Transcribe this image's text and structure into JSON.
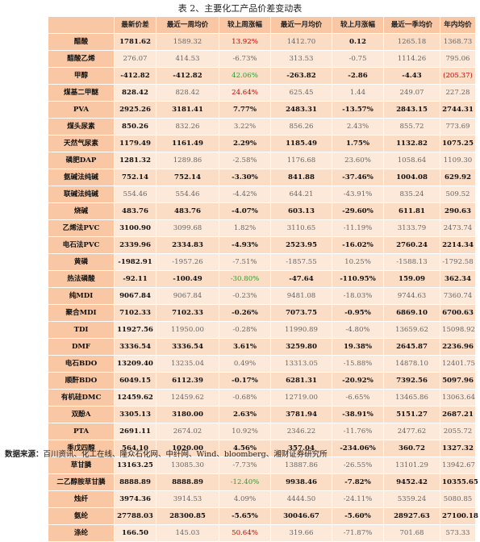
{
  "title": "表 2、主要化工产品价差变动表",
  "headers": [
    "",
    "最新价差",
    "最近一周均价",
    "较上周涨幅",
    "最近一月均价",
    "较上月涨幅",
    "最近一季均价",
    "年内均价"
  ],
  "rows": [
    [
      "醋酸",
      "1781.62",
      "1589.32",
      "13.92%",
      "1412.70",
      "0.12",
      "1265.18",
      "1368.73"
    ],
    [
      "醋酸乙烯",
      "276.07",
      "414.53",
      "-6.73%",
      "313.53",
      "-0.75",
      "1114.26",
      "795.06"
    ],
    [
      "甲醇",
      "-412.82",
      "-412.82",
      "42.06%",
      "-263.82",
      "-2.86",
      "-4.43",
      "(205.37)"
    ],
    [
      "煤基二甲醚",
      "828.42",
      "828.42",
      "24.64%",
      "625.45",
      "1.44",
      "249.07",
      "227.28"
    ],
    [
      "PVA",
      "2925.26",
      "3181.41",
      "7.77%",
      "2483.31",
      "-13.57%",
      "2843.15",
      "2744.31"
    ],
    [
      "煤头尿素",
      "850.26",
      "832.26",
      "3.22%",
      "856.26",
      "2.43%",
      "855.72",
      "773.69"
    ],
    [
      "天然气尿素",
      "1179.49",
      "1161.49",
      "2.29%",
      "1185.49",
      "1.75%",
      "1132.82",
      "1075.25"
    ],
    [
      "磷肥DAP",
      "1281.32",
      "1289.86",
      "-2.58%",
      "1176.68",
      "23.60%",
      "1058.64",
      "1109.30"
    ],
    [
      "氨碱法纯碱",
      "752.14",
      "752.14",
      "-3.30%",
      "841.88",
      "-37.46%",
      "1004.08",
      "629.92"
    ],
    [
      "联碱法纯碱",
      "554.46",
      "554.46",
      "-4.42%",
      "644.21",
      "-43.91%",
      "835.24",
      "509.52"
    ],
    [
      "烧碱",
      "483.76",
      "483.76",
      "-4.07%",
      "603.13",
      "-29.60%",
      "611.81",
      "290.63"
    ],
    [
      "乙烯法PVC",
      "3100.90",
      "3099.68",
      "1.82%",
      "3110.65",
      "-11.19%",
      "3133.79",
      "2473.74"
    ],
    [
      "电石法PVC",
      "2339.96",
      "2334.83",
      "-4.93%",
      "2523.95",
      "-16.02%",
      "2760.24",
      "2214.34"
    ],
    [
      "黄磷",
      "-1982.91",
      "-1957.26",
      "-7.51%",
      "-1857.55",
      "10.25%",
      "-1588.13",
      "-1792.58"
    ],
    [
      "热法磷酸",
      "-92.11",
      "-100.49",
      "-30.80%",
      "-47.64",
      "-110.95%",
      "159.09",
      "362.34"
    ],
    [
      "纯MDI",
      "9067.84",
      "9067.84",
      "-0.23%",
      "9481.08",
      "-18.03%",
      "9744.63",
      "7360.74"
    ],
    [
      "聚合MDI",
      "7102.33",
      "7102.33",
      "-0.26%",
      "7073.75",
      "-0.95%",
      "6869.10",
      "6700.63"
    ],
    [
      "TDI",
      "11927.56",
      "11950.00",
      "-0.28%",
      "11990.89",
      "-4.80%",
      "13659.62",
      "15098.92"
    ],
    [
      "DMF",
      "3336.54",
      "3336.54",
      "3.61%",
      "3259.80",
      "19.38%",
      "2645.87",
      "2236.96"
    ],
    [
      "电石BDO",
      "13209.40",
      "13235.04",
      "0.49%",
      "13313.05",
      "-15.88%",
      "14878.10",
      "12401.75"
    ],
    [
      "顺酐BDO",
      "6049.15",
      "6112.39",
      "-0.17%",
      "6281.31",
      "-20.92%",
      "7392.56",
      "5097.96"
    ],
    [
      "有机硅DMC",
      "12459.62",
      "12459.62",
      "-0.68%",
      "12719.00",
      "-6.65%",
      "13465.86",
      "13063.64"
    ],
    [
      "双酚A",
      "3305.13",
      "3180.00",
      "2.63%",
      "3781.94",
      "-38.91%",
      "5151.27",
      "2687.21"
    ],
    [
      "PTA",
      "2691.11",
      "2674.02",
      "10.92%",
      "2346.22",
      "-11.76%",
      "2477.62",
      "2055.72"
    ],
    [
      "季戊四醇",
      "564.10",
      "1020.00",
      "4.56%",
      "357.04",
      "-234.06%",
      "360.72",
      "1327.32"
    ],
    [
      "草甘膦",
      "13163.25",
      "13085.30",
      "-7.73%",
      "13887.86",
      "-26.55%",
      "13101.29",
      "13942.67"
    ],
    [
      "二乙醇胺草甘膦",
      "8888.89",
      "8888.89",
      "-12.40%",
      "9938.46",
      "-7.82%",
      "9452.42",
      "10355.65"
    ],
    [
      "烛纤",
      "3974.36",
      "3914.53",
      "4.09%",
      "4444.50",
      "-24.11%",
      "5359.24",
      "5080.85"
    ],
    [
      "氨纶",
      "27788.03",
      "28300.85",
      "-5.65%",
      "30046.67",
      "-5.60%",
      "28927.63",
      "27100.18"
    ],
    [
      "涤纶",
      "166.50",
      "145.03",
      "50.64%",
      "319.66",
      "-71.87%",
      "701.68",
      "573.33"
    ]
  ],
  "styles": [
    [
      "bold",
      "light",
      "neg",
      "light",
      "bold",
      "light",
      "light"
    ],
    [
      "light",
      "light",
      "light",
      "light",
      "light",
      "light",
      "light"
    ],
    [
      "bold",
      "bold",
      "pos",
      "bold",
      "bold",
      "bold",
      "neg"
    ],
    [
      "bold",
      "light",
      "neg",
      "light",
      "light",
      "light",
      "light"
    ],
    [
      "bold",
      "bold",
      "bold",
      "bold",
      "bold",
      "bold",
      "bold"
    ],
    [
      "bold",
      "light",
      "light",
      "light",
      "light",
      "light",
      "light"
    ],
    [
      "bold",
      "bold",
      "bold",
      "bold",
      "bold",
      "bold",
      "bold"
    ],
    [
      "bold",
      "light",
      "light",
      "light",
      "light",
      "light",
      "light"
    ],
    [
      "bold",
      "bold",
      "bold",
      "bold",
      "bold",
      "bold",
      "bold"
    ],
    [
      "light",
      "light",
      "light",
      "light",
      "light",
      "light",
      "light"
    ],
    [
      "bold",
      "bold",
      "bold",
      "bold",
      "bold",
      "bold",
      "bold"
    ],
    [
      "bold",
      "light",
      "light",
      "light",
      "light",
      "light",
      "light"
    ],
    [
      "bold",
      "bold",
      "bold",
      "bold",
      "bold",
      "bold",
      "bold"
    ],
    [
      "bold",
      "light",
      "light",
      "light",
      "light",
      "light",
      "light"
    ],
    [
      "bold",
      "bold",
      "pos",
      "bold",
      "bold",
      "bold",
      "bold"
    ],
    [
      "bold",
      "light",
      "light",
      "light",
      "light",
      "light",
      "light"
    ],
    [
      "bold",
      "bold",
      "bold",
      "bold",
      "bold",
      "bold",
      "bold"
    ],
    [
      "bold",
      "light",
      "light",
      "light",
      "light",
      "light",
      "light"
    ],
    [
      "bold",
      "bold",
      "bold",
      "bold",
      "bold",
      "bold",
      "bold"
    ],
    [
      "bold",
      "light",
      "light",
      "light",
      "light",
      "light",
      "light"
    ],
    [
      "bold",
      "bold",
      "bold",
      "bold",
      "bold",
      "bold",
      "bold"
    ],
    [
      "bold",
      "light",
      "light",
      "light",
      "light",
      "light",
      "light"
    ],
    [
      "bold",
      "bold",
      "bold",
      "bold",
      "bold",
      "bold",
      "bold"
    ],
    [
      "bold",
      "light",
      "light",
      "light",
      "light",
      "light",
      "light"
    ],
    [
      "bold",
      "bold",
      "bold",
      "bold",
      "bold",
      "bold",
      "bold"
    ],
    [
      "bold",
      "light",
      "light",
      "light",
      "light",
      "light",
      "light"
    ],
    [
      "bold",
      "bold",
      "pos",
      "bold",
      "bold",
      "bold",
      "bold"
    ],
    [
      "bold",
      "light",
      "light",
      "light",
      "light",
      "light",
      "light"
    ],
    [
      "bold",
      "bold",
      "bold",
      "bold",
      "bold",
      "bold",
      "bold"
    ],
    [
      "bold",
      "light",
      "neg",
      "light",
      "light",
      "light",
      "light"
    ]
  ],
  "footer": {
    "label": "数据来源：",
    "text": "百川资讯、化工在线、隆众石化网、中纤网、Wind、bloomberg、湘财证券研究所"
  }
}
